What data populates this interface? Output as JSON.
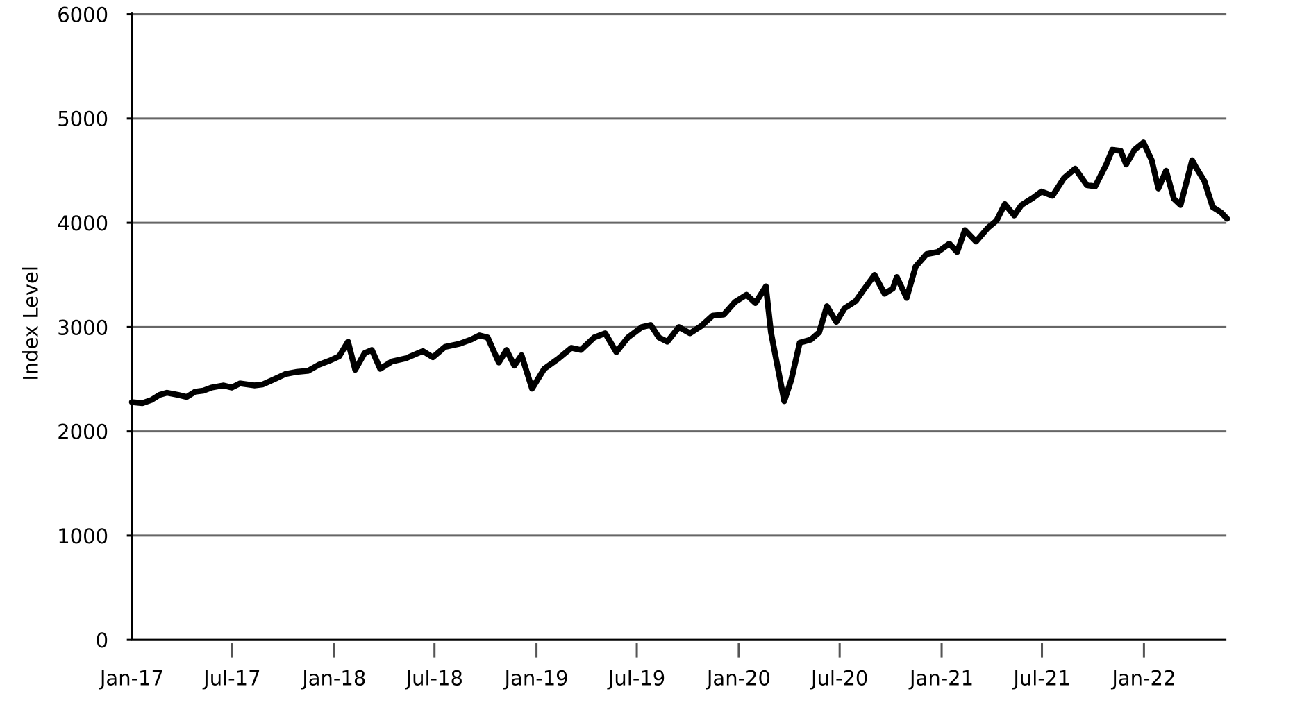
{
  "chart_data": {
    "type": "line",
    "title": "",
    "xlabel": "",
    "ylabel": "Index Level",
    "ylim": [
      0,
      6000
    ],
    "xlim": [
      "2017-01-01",
      "2022-05-31"
    ],
    "yticks": [
      0,
      1000,
      2000,
      3000,
      4000,
      5000,
      6000
    ],
    "xticks": [
      {
        "date": "2017-01-01",
        "label": "Jan-17"
      },
      {
        "date": "2017-07-01",
        "label": "Jul-17"
      },
      {
        "date": "2018-01-01",
        "label": "Jan-18"
      },
      {
        "date": "2018-07-01",
        "label": "Jul-18"
      },
      {
        "date": "2019-01-01",
        "label": "Jan-19"
      },
      {
        "date": "2019-07-01",
        "label": "Jul-19"
      },
      {
        "date": "2020-01-01",
        "label": "Jan-20"
      },
      {
        "date": "2020-07-01",
        "label": "Jul-20"
      },
      {
        "date": "2021-01-01",
        "label": "Jan-21"
      },
      {
        "date": "2021-07-01",
        "label": "Jul-21"
      },
      {
        "date": "2022-01-01",
        "label": "Jan-22"
      }
    ],
    "grid": "horizontal",
    "line_color": "#000000",
    "series": [
      {
        "points": [
          [
            "2017-01-01",
            2280
          ],
          [
            "2017-01-20",
            2270
          ],
          [
            "2017-02-05",
            2300
          ],
          [
            "2017-02-20",
            2350
          ],
          [
            "2017-03-05",
            2370
          ],
          [
            "2017-03-25",
            2350
          ],
          [
            "2017-04-10",
            2330
          ],
          [
            "2017-04-25",
            2380
          ],
          [
            "2017-05-10",
            2390
          ],
          [
            "2017-05-25",
            2420
          ],
          [
            "2017-06-15",
            2440
          ],
          [
            "2017-06-30",
            2420
          ],
          [
            "2017-07-15",
            2460
          ],
          [
            "2017-08-10",
            2440
          ],
          [
            "2017-08-25",
            2450
          ],
          [
            "2017-09-15",
            2500
          ],
          [
            "2017-10-05",
            2550
          ],
          [
            "2017-10-25",
            2570
          ],
          [
            "2017-11-15",
            2580
          ],
          [
            "2017-12-05",
            2640
          ],
          [
            "2017-12-25",
            2680
          ],
          [
            "2018-01-10",
            2720
          ],
          [
            "2018-01-26",
            2860
          ],
          [
            "2018-02-08",
            2590
          ],
          [
            "2018-02-25",
            2750
          ],
          [
            "2018-03-10",
            2780
          ],
          [
            "2018-03-25",
            2600
          ],
          [
            "2018-04-15",
            2670
          ],
          [
            "2018-05-10",
            2700
          ],
          [
            "2018-06-10",
            2770
          ],
          [
            "2018-06-28",
            2710
          ],
          [
            "2018-07-20",
            2810
          ],
          [
            "2018-08-15",
            2840
          ],
          [
            "2018-09-05",
            2880
          ],
          [
            "2018-09-20",
            2920
          ],
          [
            "2018-10-05",
            2900
          ],
          [
            "2018-10-25",
            2660
          ],
          [
            "2018-11-08",
            2780
          ],
          [
            "2018-11-22",
            2630
          ],
          [
            "2018-12-05",
            2730
          ],
          [
            "2018-12-24",
            2410
          ],
          [
            "2019-01-15",
            2600
          ],
          [
            "2019-02-10",
            2700
          ],
          [
            "2019-03-05",
            2800
          ],
          [
            "2019-03-22",
            2780
          ],
          [
            "2019-04-15",
            2900
          ],
          [
            "2019-05-05",
            2940
          ],
          [
            "2019-05-25",
            2760
          ],
          [
            "2019-06-15",
            2900
          ],
          [
            "2019-07-10",
            3000
          ],
          [
            "2019-07-26",
            3020
          ],
          [
            "2019-08-10",
            2900
          ],
          [
            "2019-08-25",
            2860
          ],
          [
            "2019-09-15",
            3000
          ],
          [
            "2019-10-05",
            2940
          ],
          [
            "2019-10-25",
            3010
          ],
          [
            "2019-11-15",
            3110
          ],
          [
            "2019-12-05",
            3120
          ],
          [
            "2019-12-25",
            3240
          ],
          [
            "2020-01-15",
            3310
          ],
          [
            "2020-01-31",
            3230
          ],
          [
            "2020-02-19",
            3390
          ],
          [
            "2020-02-28",
            2950
          ],
          [
            "2020-03-23",
            2290
          ],
          [
            "2020-04-05",
            2500
          ],
          [
            "2020-04-20",
            2850
          ],
          [
            "2020-05-10",
            2880
          ],
          [
            "2020-05-25",
            2950
          ],
          [
            "2020-06-08",
            3200
          ],
          [
            "2020-06-25",
            3050
          ],
          [
            "2020-07-10",
            3180
          ],
          [
            "2020-07-30",
            3250
          ],
          [
            "2020-08-15",
            3370
          ],
          [
            "2020-09-02",
            3500
          ],
          [
            "2020-09-20",
            3320
          ],
          [
            "2020-10-05",
            3370
          ],
          [
            "2020-10-12",
            3480
          ],
          [
            "2020-10-30",
            3280
          ],
          [
            "2020-11-15",
            3580
          ],
          [
            "2020-12-05",
            3700
          ],
          [
            "2020-12-25",
            3720
          ],
          [
            "2021-01-15",
            3800
          ],
          [
            "2021-01-29",
            3720
          ],
          [
            "2021-02-12",
            3930
          ],
          [
            "2021-03-04",
            3820
          ],
          [
            "2021-03-25",
            3950
          ],
          [
            "2021-04-10",
            4020
          ],
          [
            "2021-04-25",
            4180
          ],
          [
            "2021-05-12",
            4070
          ],
          [
            "2021-05-25",
            4170
          ],
          [
            "2021-06-15",
            4240
          ],
          [
            "2021-06-30",
            4300
          ],
          [
            "2021-07-20",
            4260
          ],
          [
            "2021-08-10",
            4430
          ],
          [
            "2021-08-30",
            4520
          ],
          [
            "2021-09-20",
            4360
          ],
          [
            "2021-10-05",
            4350
          ],
          [
            "2021-10-25",
            4560
          ],
          [
            "2021-11-05",
            4700
          ],
          [
            "2021-11-20",
            4690
          ],
          [
            "2021-11-30",
            4560
          ],
          [
            "2021-12-15",
            4700
          ],
          [
            "2021-12-31",
            4770
          ],
          [
            "2022-01-15",
            4600
          ],
          [
            "2022-01-27",
            4330
          ],
          [
            "2022-02-10",
            4500
          ],
          [
            "2022-02-24",
            4230
          ],
          [
            "2022-03-08",
            4170
          ],
          [
            "2022-03-29",
            4600
          ],
          [
            "2022-04-05",
            4530
          ],
          [
            "2022-04-20",
            4400
          ],
          [
            "2022-05-05",
            4150
          ],
          [
            "2022-05-20",
            4100
          ],
          [
            "2022-05-31",
            4040
          ]
        ]
      }
    ]
  }
}
